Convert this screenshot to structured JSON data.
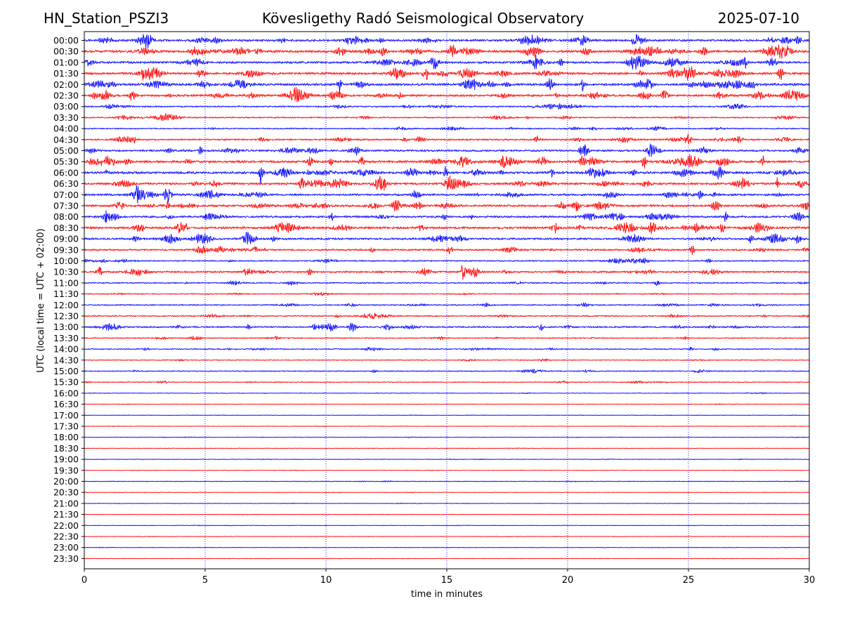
{
  "header": {
    "station": "HN_Station_PSZI3",
    "observatory": "Kövesligethy Radó Seismological Observatory",
    "date": "2025-07-10"
  },
  "chart_data": {
    "type": "line",
    "title": "Kövesligethy Radó Seismological Observatory",
    "xlabel": "time in minutes",
    "ylabel": "UTC (local time = UTC + 02:00)",
    "xlim": [
      0,
      30
    ],
    "xticks": [
      0,
      5,
      10,
      15,
      20,
      25,
      30
    ],
    "vertical_gridlines": [
      5,
      10,
      15,
      20,
      25
    ],
    "grid_style": "dotted",
    "trace_colors": [
      "#0000ff",
      "#ff0000"
    ],
    "color_pattern": "alternating: blue on the hour, red on the half hour",
    "rows": [
      {
        "label": "00:00",
        "activity": 0.9
      },
      {
        "label": "00:30",
        "activity": 1.0
      },
      {
        "label": "01:00",
        "activity": 0.9
      },
      {
        "label": "01:30",
        "activity": 1.0
      },
      {
        "label": "02:00",
        "activity": 1.0
      },
      {
        "label": "02:30",
        "activity": 0.9
      },
      {
        "label": "03:00",
        "activity": 0.5
      },
      {
        "label": "03:30",
        "activity": 0.45
      },
      {
        "label": "04:00",
        "activity": 0.4
      },
      {
        "label": "04:30",
        "activity": 0.6
      },
      {
        "label": "05:00",
        "activity": 0.75
      },
      {
        "label": "05:30",
        "activity": 1.0
      },
      {
        "label": "06:00",
        "activity": 1.0
      },
      {
        "label": "06:30",
        "activity": 0.9
      },
      {
        "label": "07:00",
        "activity": 0.8
      },
      {
        "label": "07:30",
        "activity": 0.9
      },
      {
        "label": "08:00",
        "activity": 0.8
      },
      {
        "label": "08:30",
        "activity": 1.0
      },
      {
        "label": "09:00",
        "activity": 0.8
      },
      {
        "label": "09:30",
        "activity": 0.7
      },
      {
        "label": "10:00",
        "activity": 0.45
      },
      {
        "label": "10:30",
        "activity": 0.7
      },
      {
        "label": "11:00",
        "activity": 0.4
      },
      {
        "label": "11:30",
        "activity": 0.3
      },
      {
        "label": "12:00",
        "activity": 0.4
      },
      {
        "label": "12:30",
        "activity": 0.4
      },
      {
        "label": "13:00",
        "activity": 0.6
      },
      {
        "label": "13:30",
        "activity": 0.35
      },
      {
        "label": "14:00",
        "activity": 0.35
      },
      {
        "label": "14:30",
        "activity": 0.2
      },
      {
        "label": "15:00",
        "activity": 0.3
      },
      {
        "label": "15:30",
        "activity": 0.25
      },
      {
        "label": "16:00",
        "activity": 0.1
      },
      {
        "label": "16:30",
        "activity": 0.08
      },
      {
        "label": "17:00",
        "activity": 0.05
      },
      {
        "label": "17:30",
        "activity": 0.05
      },
      {
        "label": "18:00",
        "activity": 0.06
      },
      {
        "label": "18:30",
        "activity": 0.05
      },
      {
        "label": "19:00",
        "activity": 0.06
      },
      {
        "label": "19:30",
        "activity": 0.04
      },
      {
        "label": "20:00",
        "activity": 0.1
      },
      {
        "label": "20:30",
        "activity": 0.04
      },
      {
        "label": "21:00",
        "activity": 0.04
      },
      {
        "label": "21:30",
        "activity": 0.04
      },
      {
        "label": "22:00",
        "activity": 0.04
      },
      {
        "label": "22:30",
        "activity": 0.03
      },
      {
        "label": "23:00",
        "activity": 0.03
      },
      {
        "label": "23:30",
        "activity": 0.03
      }
    ]
  }
}
